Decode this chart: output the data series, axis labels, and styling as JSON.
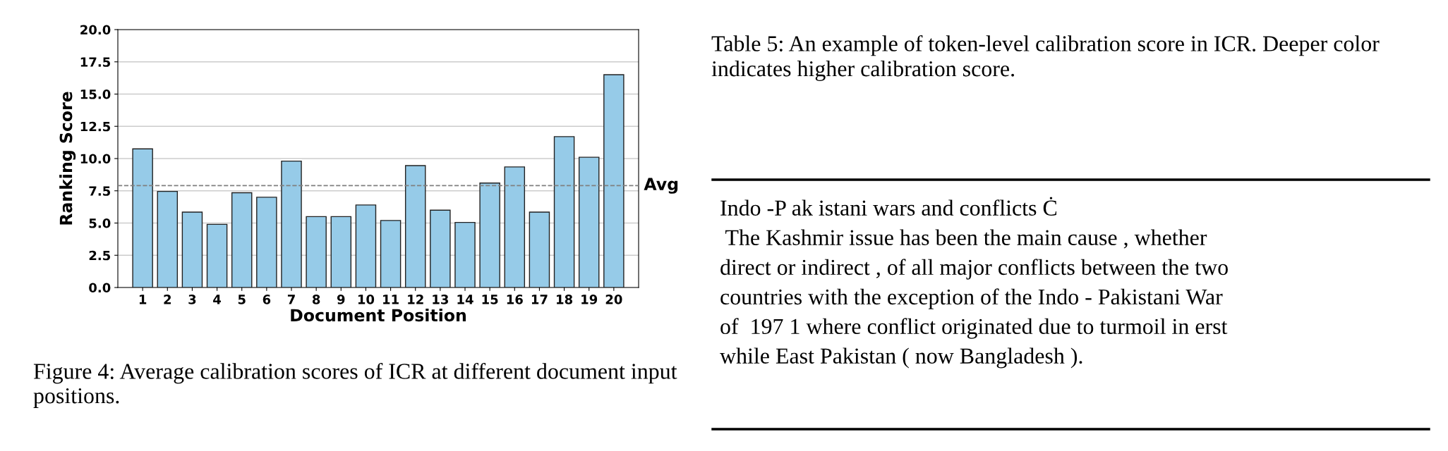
{
  "chart_data": [
    {
      "type": "bar",
      "categories": [
        "1",
        "2",
        "3",
        "4",
        "5",
        "6",
        "7",
        "8",
        "9",
        "10",
        "11",
        "12",
        "13",
        "14",
        "15",
        "16",
        "17",
        "18",
        "19",
        "20"
      ],
      "values": [
        10.75,
        7.45,
        5.85,
        4.9,
        7.35,
        7.0,
        9.8,
        5.5,
        5.5,
        6.4,
        5.2,
        9.45,
        6.0,
        5.05,
        8.1,
        9.35,
        5.85,
        11.7,
        10.1,
        16.5
      ],
      "color": "#96cbe8",
      "xlabel": "Document Position",
      "ylabel": "Ranking Score",
      "ylim": [
        0,
        20
      ],
      "yticks": [
        {
          "value": 0,
          "label": "0.0"
        },
        2.5,
        {
          "value": 5,
          "label": "5.0"
        },
        7.5,
        {
          "value": 10,
          "label": "10.0"
        },
        12.5,
        {
          "value": 15,
          "label": "15.0"
        },
        17.5,
        {
          "value": 20,
          "label": "20.0"
        }
      ],
      "grid": "y",
      "ref_lines": [
        {
          "axis": "y",
          "value": 7.9,
          "label": "Avg",
          "color": "#808080",
          "line_style": "dashed"
        }
      ],
      "annotations": [
        "Figure 4: Average calibration scores of ICR at different document input positions."
      ]
    },
    {
      "type": "other",
      "title": "Table 5: An example of token-level calibration score in ICR. Deeper color indicates higher calibration score.",
      "annotations": [
        "Indo -P ak istani wars and conflicts Ċ",
        " The Kashmir issue has been the main cause , whether",
        "direct or indirect , of all major conflicts between the two",
        "countries with the exception of the Indo - Pakistani War",
        "of  197 1 where conflict originated due to turmoil in erst",
        "while East Pakistan ( now Bangladesh )."
      ]
    }
  ]
}
